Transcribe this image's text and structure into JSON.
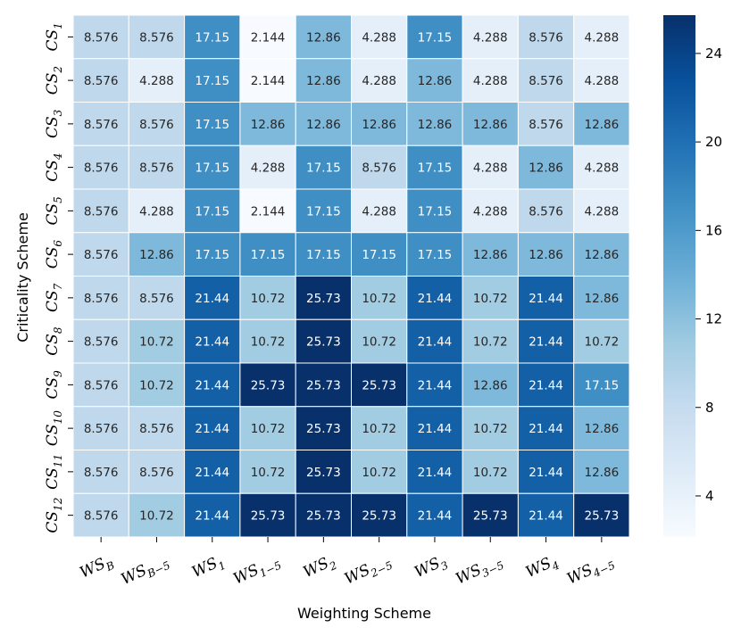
{
  "chart_data": {
    "type": "heatmap",
    "title": "",
    "xlabel": "Weighting Scheme",
    "ylabel": "Criticality Scheme",
    "x_categories": [
      {
        "base": "WS",
        "sub": "B"
      },
      {
        "base": "WS",
        "sub": "B−5"
      },
      {
        "base": "WS",
        "sub": "1"
      },
      {
        "base": "WS",
        "sub": "1−5"
      },
      {
        "base": "WS",
        "sub": "2"
      },
      {
        "base": "WS",
        "sub": "2−5"
      },
      {
        "base": "WS",
        "sub": "3"
      },
      {
        "base": "WS",
        "sub": "3−5"
      },
      {
        "base": "WS",
        "sub": "4"
      },
      {
        "base": "WS",
        "sub": "4−5"
      }
    ],
    "y_categories": [
      {
        "base": "CS",
        "sub": "1"
      },
      {
        "base": "CS",
        "sub": "2"
      },
      {
        "base": "CS",
        "sub": "3"
      },
      {
        "base": "CS",
        "sub": "4"
      },
      {
        "base": "CS",
        "sub": "5"
      },
      {
        "base": "CS",
        "sub": "6"
      },
      {
        "base": "CS",
        "sub": "7"
      },
      {
        "base": "CS",
        "sub": "8"
      },
      {
        "base": "CS",
        "sub": "9"
      },
      {
        "base": "CS",
        "sub": "10"
      },
      {
        "base": "CS",
        "sub": "11"
      },
      {
        "base": "CS",
        "sub": "12"
      }
    ],
    "values": [
      [
        "8.576",
        "8.576",
        "17.15",
        "2.144",
        "12.86",
        "4.288",
        "17.15",
        "4.288",
        "8.576",
        "4.288"
      ],
      [
        "8.576",
        "4.288",
        "17.15",
        "2.144",
        "12.86",
        "4.288",
        "12.86",
        "4.288",
        "8.576",
        "4.288"
      ],
      [
        "8.576",
        "8.576",
        "17.15",
        "12.86",
        "12.86",
        "12.86",
        "12.86",
        "12.86",
        "8.576",
        "12.86"
      ],
      [
        "8.576",
        "8.576",
        "17.15",
        "4.288",
        "17.15",
        "8.576",
        "17.15",
        "4.288",
        "12.86",
        "4.288"
      ],
      [
        "8.576",
        "4.288",
        "17.15",
        "2.144",
        "17.15",
        "4.288",
        "17.15",
        "4.288",
        "8.576",
        "4.288"
      ],
      [
        "8.576",
        "12.86",
        "17.15",
        "17.15",
        "17.15",
        "17.15",
        "17.15",
        "12.86",
        "12.86",
        "12.86"
      ],
      [
        "8.576",
        "8.576",
        "21.44",
        "10.72",
        "25.73",
        "10.72",
        "21.44",
        "10.72",
        "21.44",
        "12.86"
      ],
      [
        "8.576",
        "10.72",
        "21.44",
        "10.72",
        "25.73",
        "10.72",
        "21.44",
        "10.72",
        "21.44",
        "10.72"
      ],
      [
        "8.576",
        "10.72",
        "21.44",
        "25.73",
        "25.73",
        "25.73",
        "21.44",
        "12.86",
        "21.44",
        "17.15"
      ],
      [
        "8.576",
        "8.576",
        "21.44",
        "10.72",
        "25.73",
        "10.72",
        "21.44",
        "10.72",
        "21.44",
        "12.86"
      ],
      [
        "8.576",
        "8.576",
        "21.44",
        "10.72",
        "25.73",
        "10.72",
        "21.44",
        "10.72",
        "21.44",
        "12.86"
      ],
      [
        "8.576",
        "10.72",
        "21.44",
        "25.73",
        "25.73",
        "25.73",
        "21.44",
        "25.73",
        "21.44",
        "25.73"
      ]
    ],
    "colormap": "Blues",
    "value_range": [
      2.144,
      25.73
    ],
    "colorbar_ticks": [
      "4",
      "8",
      "12",
      "16",
      "20",
      "24"
    ],
    "grid": false,
    "legend": "colorbar-right"
  }
}
